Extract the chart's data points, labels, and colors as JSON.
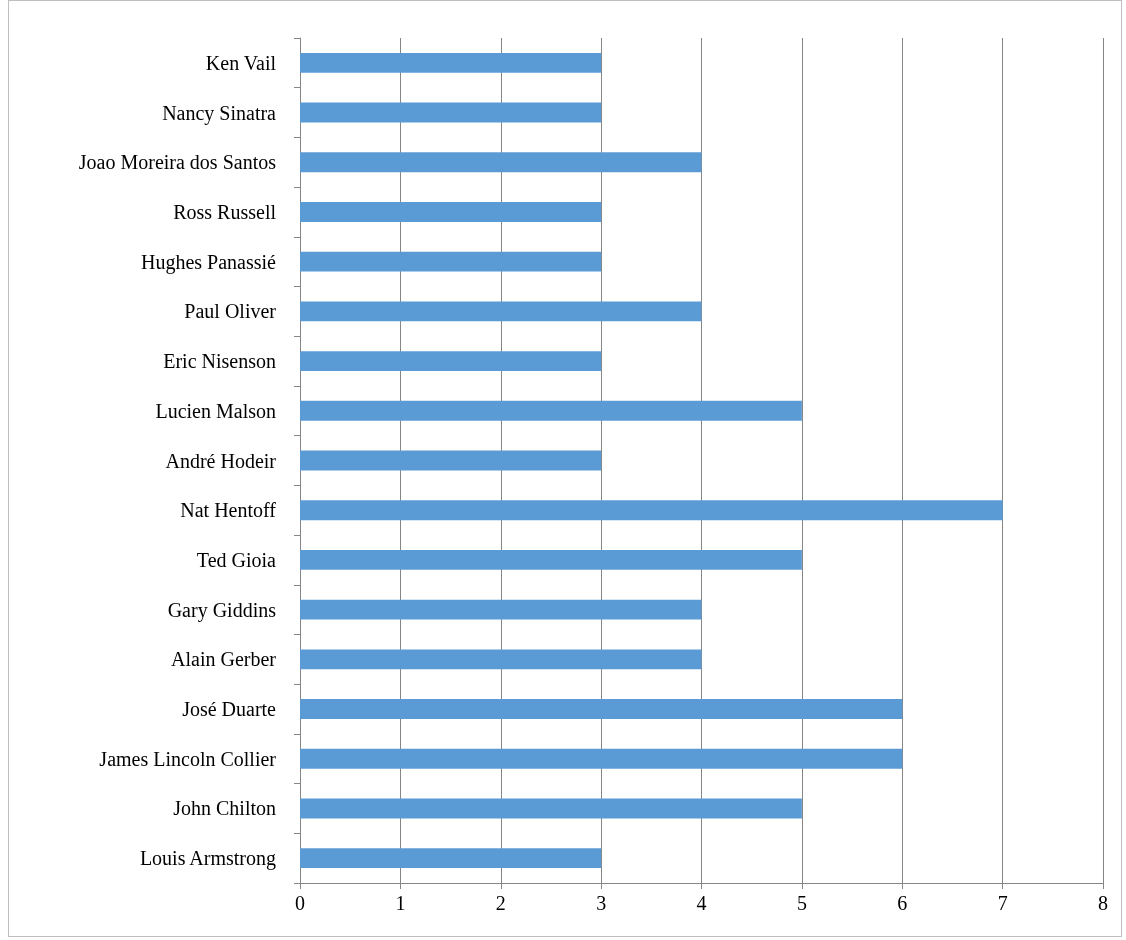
{
  "chart_data": {
    "type": "bar",
    "orientation": "horizontal",
    "categories": [
      "Ken Vail",
      "Nancy Sinatra",
      "Joao Moreira dos Santos",
      "Ross Russell",
      "Hughes Panassié",
      "Paul Oliver",
      "Eric Nisenson",
      "Lucien Malson",
      "André Hodeir",
      "Nat Hentoff",
      "Ted Gioia",
      "Gary Giddins",
      "Alain Gerber",
      "José Duarte",
      "James Lincoln Collier",
      "John Chilton",
      "Louis Armstrong"
    ],
    "values": [
      3,
      3,
      4,
      3,
      3,
      4,
      3,
      5,
      3,
      7,
      5,
      4,
      4,
      6,
      6,
      5,
      3
    ],
    "color": "#5b9bd5",
    "xlim": [
      0,
      8
    ],
    "xticks": [
      0,
      1,
      2,
      3,
      4,
      5,
      6,
      7,
      8
    ],
    "grid": "x"
  }
}
